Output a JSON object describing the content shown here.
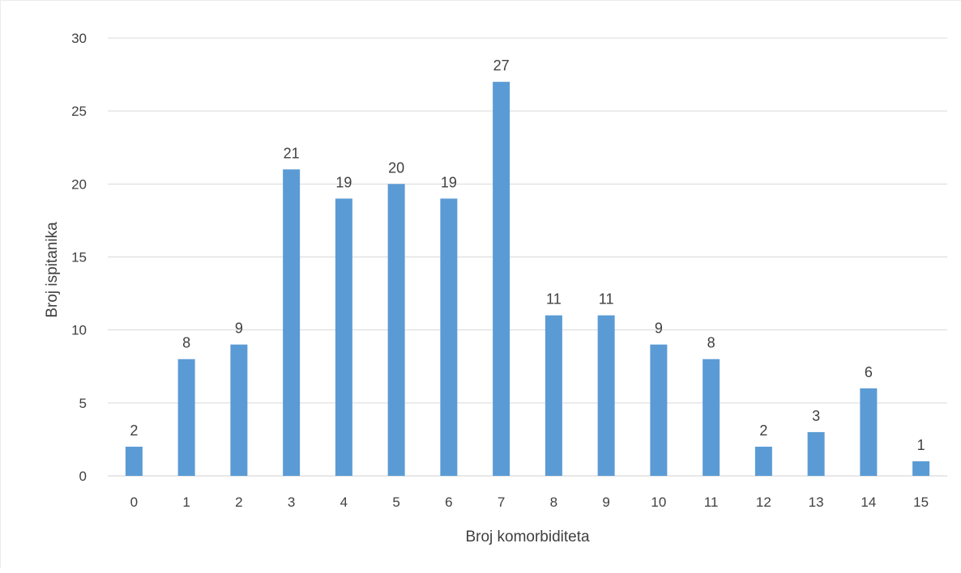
{
  "chart_data": {
    "type": "bar",
    "title": "",
    "xlabel": "Broj komorbiditeta",
    "ylabel": "Broj ispitanika",
    "categories": [
      "0",
      "1",
      "2",
      "3",
      "4",
      "5",
      "6",
      "7",
      "8",
      "9",
      "10",
      "11",
      "12",
      "13",
      "14",
      "15"
    ],
    "series": [
      {
        "values": [
          2,
          8,
          9,
          21,
          19,
          20,
          19,
          27,
          11,
          11,
          9,
          8,
          2,
          3,
          6,
          1
        ],
        "color": "#5b9bd5"
      }
    ],
    "ylim": [
      0,
      30
    ],
    "yticks": [
      "0",
      "5",
      "10",
      "15",
      "20",
      "25",
      "30"
    ],
    "data_labels": true,
    "grid": true,
    "legend": "none"
  }
}
